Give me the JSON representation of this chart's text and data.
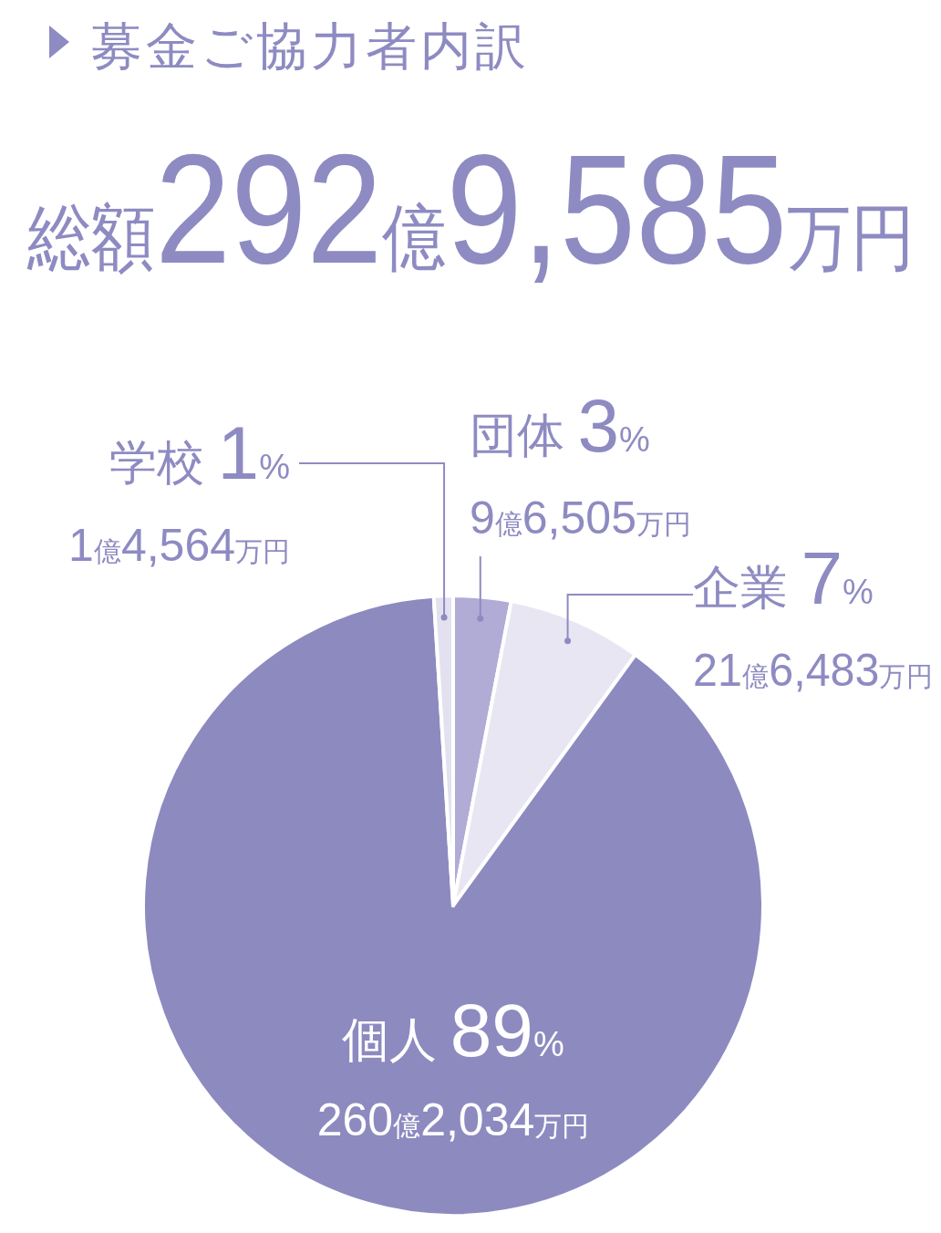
{
  "chart_data": {
    "type": "pie",
    "title": "募金ご協力者内訳",
    "subtitle": "総額292億9,585万円",
    "categories": [
      "団体",
      "企業",
      "個人",
      "学校"
    ],
    "values": [
      3,
      7,
      89,
      1
    ],
    "colors": [
      "#b0acd6",
      "#e8e6f3",
      "#8d8ac0",
      "#e3e1f0"
    ],
    "value_labels": [
      "3%",
      "7%",
      "89%",
      "1%"
    ],
    "annotations": [
      "9億6,505万円",
      "21億6,483万円",
      "260億2,034万円",
      "1億4,564万円"
    ]
  }
}
